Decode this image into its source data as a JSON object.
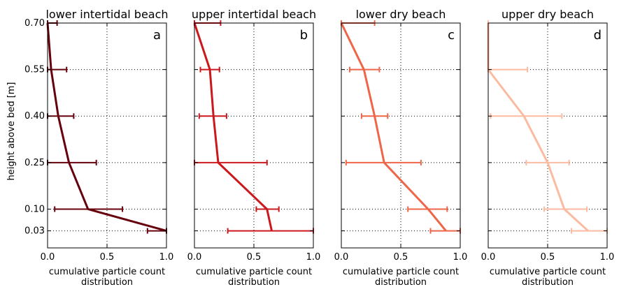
{
  "figure": {
    "ylabel": "height above bed [m]",
    "xlabel_line1": "cumulative particle count",
    "xlabel_line2": "distribution"
  },
  "chart_data": [
    {
      "type": "line",
      "title": "lower intertidal beach",
      "panel_label": "a",
      "color": "#67000d",
      "xlim": [
        0,
        1
      ],
      "ylim": [
        -0.025,
        0.7
      ],
      "x_ticks": [
        "0.0",
        "0.5",
        "1.0"
      ],
      "y_ticks": [
        "0.70",
        "0.55",
        "0.40",
        "0.25",
        "0.10",
        "0.03"
      ],
      "heights": [
        0.7,
        0.55,
        0.4,
        0.25,
        0.1,
        0.03
      ],
      "values": [
        0.0,
        0.03,
        0.09,
        0.18,
        0.34,
        1.0
      ],
      "err_low": [
        0.0,
        0.0,
        0.0,
        0.0,
        0.06,
        0.84
      ],
      "err_high": [
        0.08,
        0.16,
        0.22,
        0.41,
        0.63,
        1.0
      ]
    },
    {
      "type": "line",
      "title": "upper intertidal beach",
      "panel_label": "b",
      "color": "#cb181d",
      "xlim": [
        0,
        1
      ],
      "ylim": [
        -0.025,
        0.7
      ],
      "x_ticks": [
        "0.0",
        "0.5",
        "1.0"
      ],
      "y_ticks": [
        "0.70",
        "0.55",
        "0.40",
        "0.25",
        "0.10",
        "0.03"
      ],
      "heights": [
        0.7,
        0.55,
        0.4,
        0.25,
        0.1,
        0.03
      ],
      "values": [
        0.0,
        0.13,
        0.16,
        0.2,
        0.61,
        0.65
      ],
      "err_low": [
        0.0,
        0.05,
        0.04,
        0.0,
        0.52,
        0.28
      ],
      "err_high": [
        0.22,
        0.21,
        0.27,
        0.61,
        0.71,
        1.0
      ]
    },
    {
      "type": "line",
      "title": "lower dry beach",
      "panel_label": "c",
      "color": "#ef6548",
      "xlim": [
        0,
        1
      ],
      "ylim": [
        -0.025,
        0.7
      ],
      "x_ticks": [
        "0.0",
        "0.5",
        "1.0"
      ],
      "y_ticks": [
        "0.70",
        "0.55",
        "0.40",
        "0.25",
        "0.10",
        "0.03"
      ],
      "heights": [
        0.7,
        0.55,
        0.4,
        0.25,
        0.1,
        0.03
      ],
      "values": [
        0.0,
        0.19,
        0.28,
        0.36,
        0.73,
        0.88
      ],
      "err_low": [
        0.0,
        0.07,
        0.17,
        0.04,
        0.56,
        0.75
      ],
      "err_high": [
        0.28,
        0.32,
        0.39,
        0.67,
        0.89,
        1.0
      ]
    },
    {
      "type": "line",
      "title": "upper dry beach",
      "panel_label": "d",
      "color": "#fcbba1",
      "xlim": [
        0,
        1
      ],
      "ylim": [
        -0.025,
        0.7
      ],
      "x_ticks": [
        "0.0",
        "0.5",
        "1.0"
      ],
      "y_ticks": [
        "0.70",
        "0.55",
        "0.40",
        "0.25",
        "0.10",
        "0.03"
      ],
      "heights": [
        0.7,
        0.55,
        0.4,
        0.25,
        0.1,
        0.03
      ],
      "values": [
        0.0,
        0.0,
        0.3,
        0.5,
        0.64,
        0.84
      ],
      "err_low": [
        0.0,
        0.0,
        0.02,
        0.32,
        0.47,
        0.7
      ],
      "err_high": [
        0.0,
        0.33,
        0.62,
        0.68,
        0.83,
        1.0
      ]
    }
  ]
}
